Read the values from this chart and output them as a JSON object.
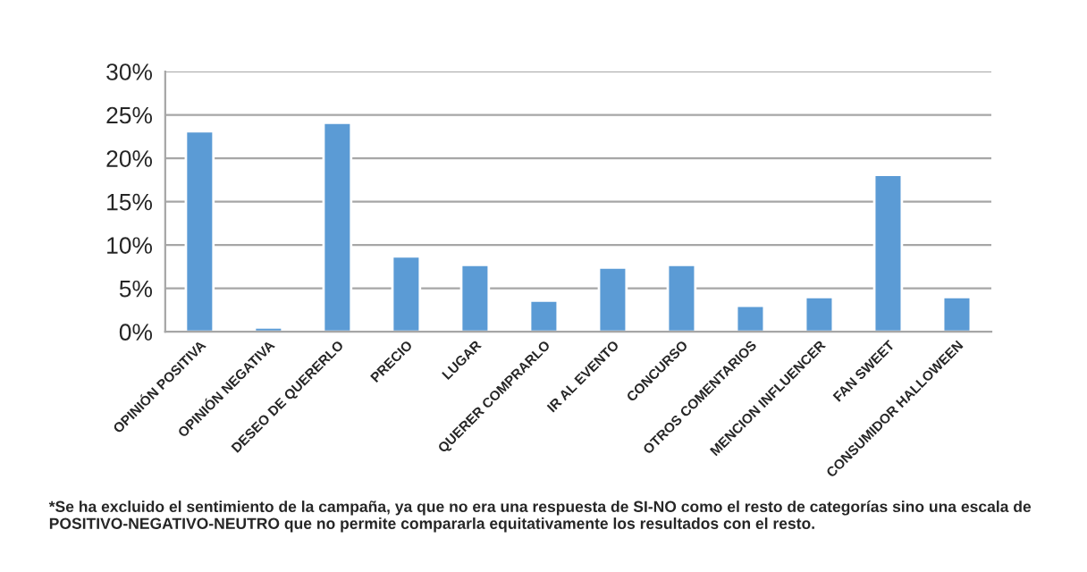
{
  "chart_data": {
    "type": "bar",
    "categories": [
      "OPINIÓN POSITIVA",
      "OPINIÓN NEGATIVA",
      "DESEO DE QUERERLO",
      "PRECIO",
      "LUGAR",
      "QUERER COMPRARLO",
      "IR AL EVENTO",
      "CONCURSO",
      "OTROS COMENTARIOS",
      "MENCION INFLUENCER",
      "FAN SWEET",
      "CONSUMIDOR HALLOWEEN"
    ],
    "values": [
      23.1,
      0.5,
      24.1,
      8.7,
      7.7,
      3.6,
      7.4,
      7.7,
      3.0,
      4.0,
      18.1,
      4.0
    ],
    "color": "#5b9bd5",
    "ylim": [
      0,
      30
    ],
    "yticks": [
      {
        "value": 0,
        "label": "0%"
      },
      {
        "value": 5,
        "label": "5%"
      },
      {
        "value": 10,
        "label": "10%"
      },
      {
        "value": 15,
        "label": "15%"
      },
      {
        "value": 20,
        "label": "20%"
      },
      {
        "value": 25,
        "label": "25%"
      },
      {
        "value": 30,
        "label": "30%"
      }
    ],
    "grid": "y",
    "annotations": [
      "*Se ha excluido el sentimiento de la campaña, ya que no era una respuesta de SI-NO como el resto de categorías sino una escala de POSITIVO-NEGATIVO-NEUTRO que no permite compararla equitativamente los resultados con el resto."
    ]
  }
}
